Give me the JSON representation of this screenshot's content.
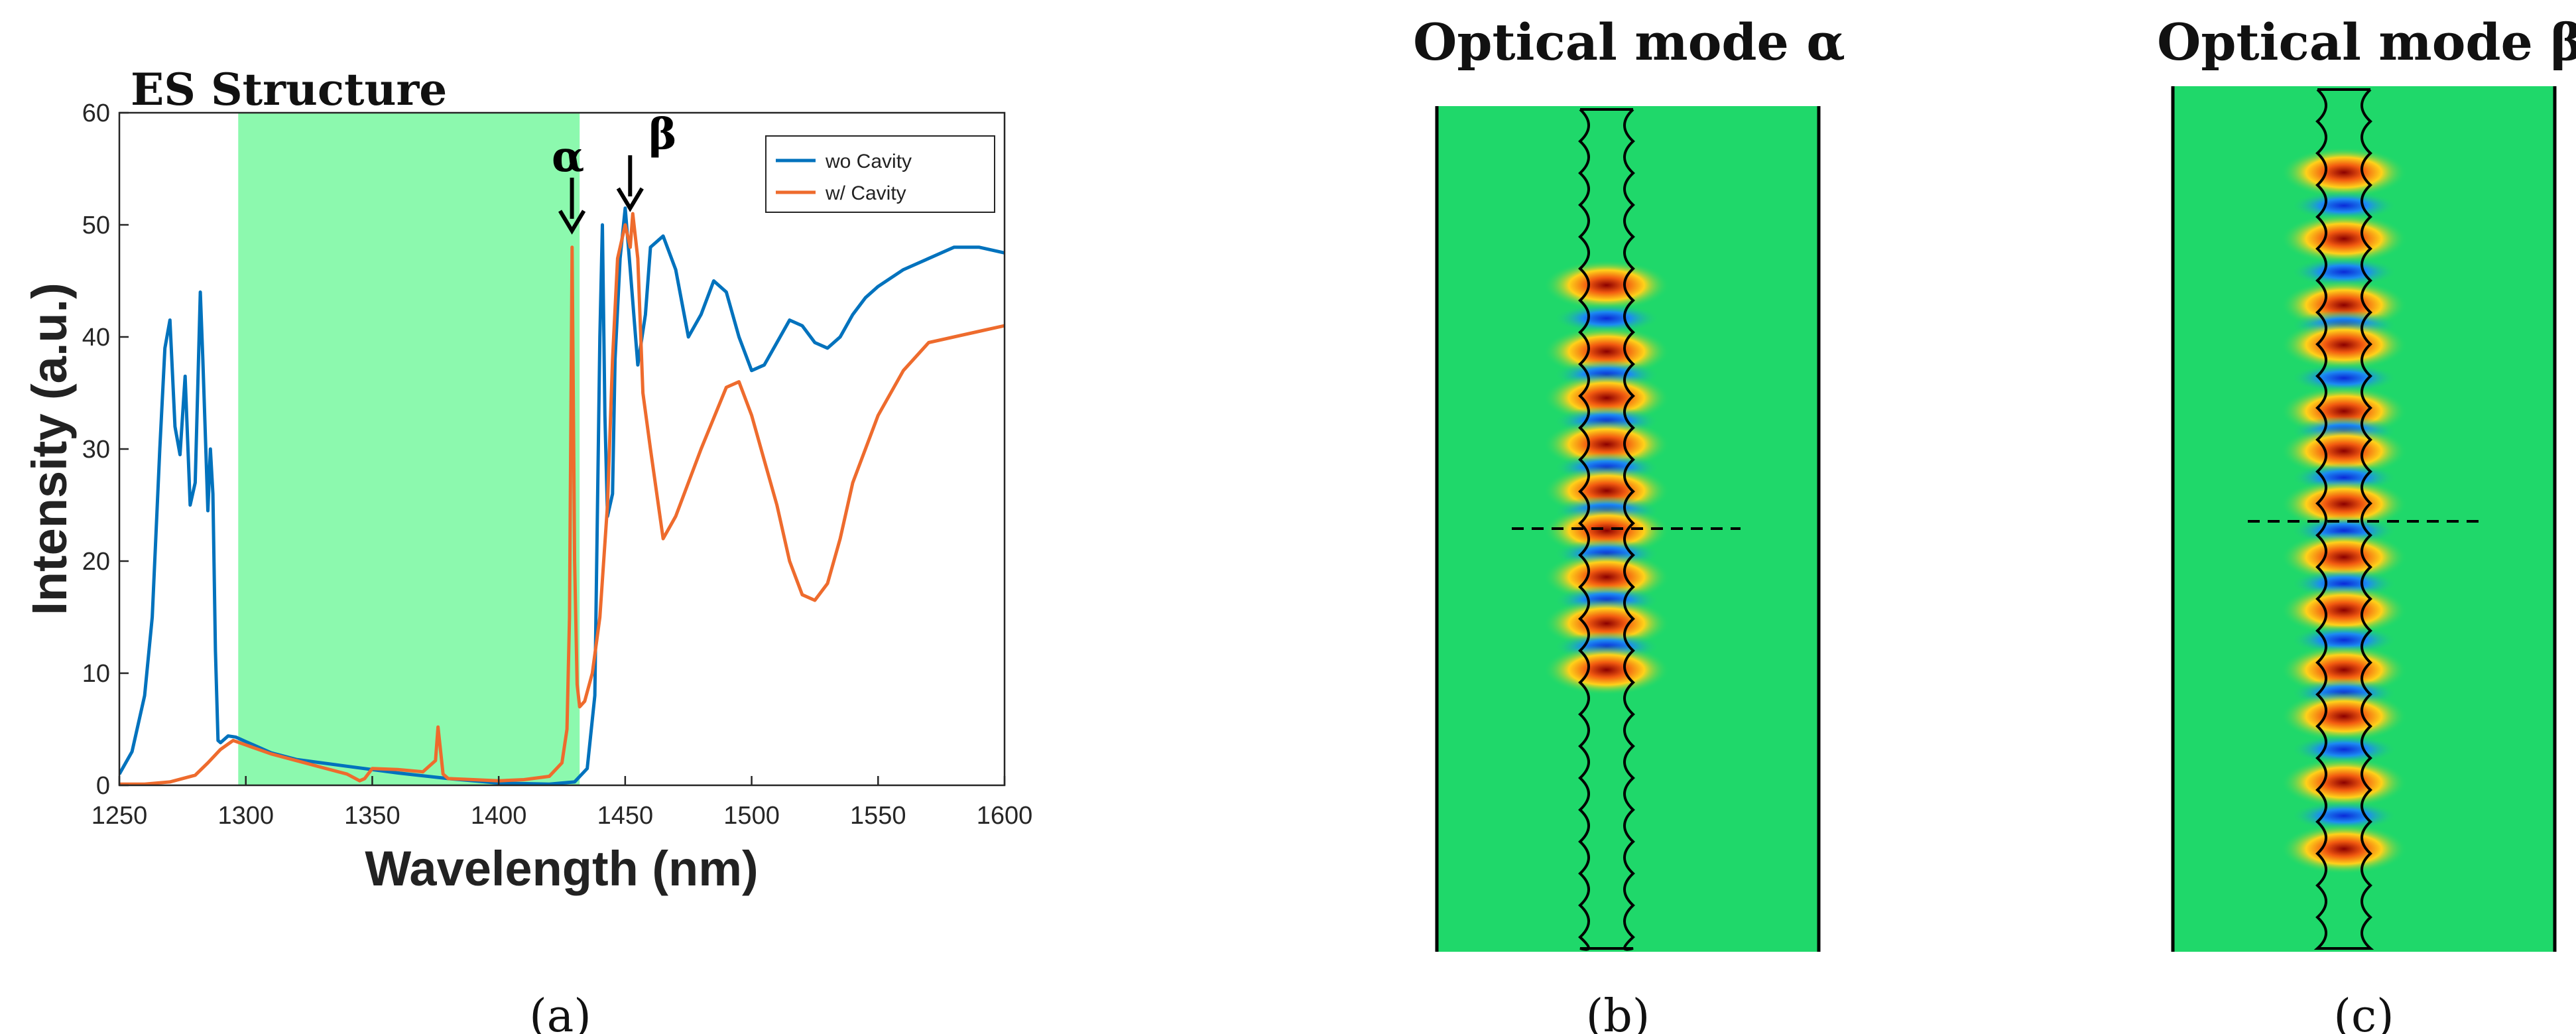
{
  "panels": {
    "a": {
      "caption": "(a)"
    },
    "b": {
      "title": "Optical mode α",
      "caption": "(b)",
      "hotspots": [
        430,
        530,
        600,
        670,
        740,
        800,
        870,
        940,
        1010
      ]
    },
    "c": {
      "title": "Optical mode β",
      "caption": "(c)",
      "hotspots": [
        260,
        360,
        460,
        520,
        620,
        680,
        760,
        840,
        920,
        1010,
        1080,
        1180,
        1280
      ]
    }
  },
  "colors": {
    "series_wo": "#0072BD",
    "series_w": "#EE6B2D",
    "band": "#8CF9AE",
    "field_bg": "#1FD86A"
  },
  "chart_data": {
    "type": "line",
    "title": "ES Structure",
    "xlabel": "Wavelength (nm)",
    "ylabel": "Intensity (a.u.)",
    "xlim": [
      1250,
      1600
    ],
    "ylim": [
      0,
      60
    ],
    "xticks": [
      1250,
      1300,
      1350,
      1400,
      1450,
      1500,
      1550,
      1600
    ],
    "yticks": [
      0,
      10,
      20,
      30,
      40,
      50,
      60
    ],
    "legend_position": "top-right",
    "shaded_band": [
      1297,
      1432
    ],
    "annotations": [
      {
        "label": "α",
        "x": 1430,
        "y": 49
      },
      {
        "label": "β",
        "x": 1453,
        "y": 51
      }
    ],
    "series": [
      {
        "name": "wo Cavity",
        "x": [
          1250,
          1255,
          1260,
          1263,
          1266,
          1268,
          1270,
          1272,
          1274,
          1276,
          1278,
          1280,
          1282,
          1283,
          1285,
          1286,
          1287,
          1288,
          1289,
          1290,
          1293,
          1296,
          1300,
          1310,
          1320,
          1340,
          1360,
          1380,
          1400,
          1420,
          1430,
          1435,
          1438,
          1440,
          1441,
          1442,
          1443,
          1445,
          1446,
          1448,
          1450,
          1452,
          1455,
          1458,
          1460,
          1465,
          1470,
          1475,
          1480,
          1485,
          1490,
          1495,
          1500,
          1505,
          1510,
          1515,
          1520,
          1525,
          1530,
          1535,
          1540,
          1545,
          1550,
          1560,
          1570,
          1580,
          1590,
          1600
        ],
        "y": [
          1.0,
          3.0,
          8.0,
          15.0,
          30.0,
          39.0,
          41.5,
          32.0,
          29.5,
          36.5,
          25.0,
          27.0,
          44.0,
          38.0,
          24.5,
          30.0,
          26.0,
          12.0,
          4.0,
          3.8,
          4.4,
          4.3,
          3.9,
          2.9,
          2.3,
          1.7,
          1.1,
          0.6,
          0.2,
          0.1,
          0.3,
          1.5,
          8.0,
          40.0,
          50.0,
          33.0,
          24.0,
          26.0,
          38.0,
          47.0,
          51.5,
          46.0,
          37.5,
          42.0,
          48.0,
          49.0,
          46.0,
          40.0,
          42.0,
          45.0,
          44.0,
          40.0,
          37.0,
          37.5,
          39.5,
          41.5,
          41.0,
          39.5,
          39.0,
          40.0,
          42.0,
          43.5,
          44.5,
          46.0,
          47.0,
          48.0,
          48.0,
          47.5
        ]
      },
      {
        "name": "w/ Cavity",
        "x": [
          1250,
          1260,
          1270,
          1280,
          1285,
          1290,
          1295,
          1300,
          1310,
          1320,
          1330,
          1340,
          1345,
          1347,
          1350,
          1360,
          1370,
          1375,
          1376,
          1378,
          1380,
          1390,
          1400,
          1410,
          1420,
          1425,
          1427,
          1428,
          1429,
          1430,
          1431,
          1432,
          1434,
          1437,
          1440,
          1443,
          1445,
          1447,
          1450,
          1452,
          1453,
          1455,
          1457,
          1460,
          1465,
          1470,
          1480,
          1490,
          1495,
          1500,
          1505,
          1510,
          1515,
          1520,
          1525,
          1530,
          1535,
          1540,
          1550,
          1560,
          1570,
          1580,
          1590,
          1600
        ],
        "y": [
          0.1,
          0.1,
          0.3,
          0.9,
          2.0,
          3.2,
          4.0,
          3.6,
          2.8,
          2.2,
          1.6,
          1.0,
          0.4,
          0.6,
          1.5,
          1.4,
          1.2,
          2.2,
          5.2,
          1.0,
          0.6,
          0.5,
          0.4,
          0.5,
          0.8,
          2.0,
          5.0,
          15.0,
          48.0,
          20.0,
          9.0,
          7.0,
          7.5,
          10.0,
          15.0,
          25.0,
          38.0,
          47.0,
          50.0,
          48.0,
          51.0,
          47.0,
          35.0,
          30.0,
          22.0,
          24.0,
          30.0,
          35.5,
          36.0,
          33.0,
          29.0,
          25.0,
          20.0,
          17.0,
          16.5,
          18.0,
          22.0,
          27.0,
          33.0,
          37.0,
          39.5,
          40.0,
          40.5,
          41.0
        ]
      }
    ]
  }
}
